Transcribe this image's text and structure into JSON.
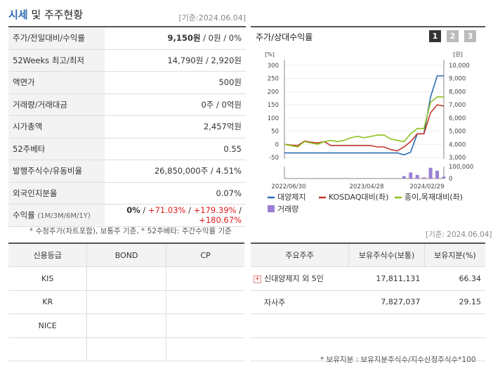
{
  "header": {
    "title_a": "시세",
    "title_b": " 및 주주현황",
    "asof": "[기준:2024.06.04]"
  },
  "price_table": {
    "rows": [
      {
        "label": "주가/전일대비/수익률",
        "value_a": "9,150원",
        "value_b": " / 0원 / 0%"
      },
      {
        "label": "52Weeks 최고/최저",
        "value": "14,790원 / 2,920원"
      },
      {
        "label": "액면가",
        "value": "500원"
      },
      {
        "label": "거래량/거래대금",
        "value": "0주 / 0억원"
      },
      {
        "label": "시가총액",
        "value": "2,457억원"
      },
      {
        "label": "52주베타",
        "value": "0.55"
      },
      {
        "label": "발행주식수/유동비율",
        "value": "26,850,000주 / 4.51%"
      },
      {
        "label": "외국인지분율",
        "value": "0.07%"
      }
    ],
    "returns": {
      "label": "수익률",
      "label_small": "(1M/3M/6M/1Y)",
      "v1": "0%",
      "v2": "+71.03%",
      "v3": "+179.39%",
      "v4": "+180.67%"
    },
    "footnote": "* 수정주가(차트포함), 보통주 기준, * 52주베타: 주간수익률 기준"
  },
  "chart_panel": {
    "title": "주가/상대수익률",
    "tabs": [
      "1",
      "2",
      "3"
    ],
    "colors": {
      "tab_active": "#333333",
      "tab_inactive": "#bbbbbb"
    }
  },
  "chart_data": {
    "type": "line",
    "left_axis": {
      "unit": "[%]",
      "ticks": [
        "300",
        "250",
        "200",
        "150",
        "100",
        "50",
        "0",
        "-50"
      ],
      "range": [
        -50,
        300
      ]
    },
    "right_axis": {
      "unit": "[원]",
      "ticks": [
        "10,000",
        "9,000",
        "8,000",
        "7,000",
        "6,000",
        "5,000",
        "4,000",
        "3,000"
      ],
      "range": [
        3000,
        10000
      ]
    },
    "volume_axis": {
      "ticks": [
        "100,000",
        "0"
      ],
      "range": [
        0,
        100000
      ]
    },
    "x_ticks": [
      "2022/06/30",
      "2023/04/28",
      "2024/02/29"
    ],
    "x_index": [
      0,
      1,
      2,
      3,
      4,
      5,
      6,
      7,
      8,
      9,
      10,
      11,
      12,
      13,
      14,
      15,
      16,
      17,
      18,
      19,
      20,
      21,
      22,
      23,
      24
    ],
    "series": [
      {
        "name": "대양제지",
        "color": "#2d6cb5",
        "axis": "left",
        "values": [
          -33,
          -33,
          -33,
          -33,
          -33,
          -33,
          -33,
          -33,
          -33,
          -33,
          -33,
          -33,
          -33,
          -33,
          -33,
          -33,
          -33,
          -33,
          -40,
          -30,
          40,
          40,
          180,
          260,
          260
        ]
      },
      {
        "name": "KOSDAQ대비(좌)",
        "color": "#c0392b",
        "axis": "left",
        "values": [
          0,
          -3,
          -5,
          12,
          8,
          5,
          10,
          -5,
          -5,
          -5,
          -5,
          -5,
          -5,
          -5,
          -10,
          -10,
          -20,
          -25,
          -10,
          10,
          40,
          40,
          120,
          150,
          145
        ]
      },
      {
        "name": "종이,목재대비(좌)",
        "color": "#8dc21f",
        "axis": "left",
        "values": [
          0,
          -5,
          -10,
          10,
          5,
          0,
          10,
          15,
          10,
          15,
          25,
          30,
          25,
          30,
          35,
          35,
          20,
          15,
          10,
          40,
          60,
          60,
          160,
          180,
          180
        ]
      }
    ],
    "volume": {
      "name": "거래량",
      "color": "#9b7fd4",
      "values": [
        0,
        0,
        0,
        0,
        0,
        0,
        0,
        0,
        0,
        0,
        0,
        0,
        0,
        0,
        0,
        0,
        0,
        0,
        20000,
        50000,
        30000,
        10000,
        90000,
        65000,
        15000
      ]
    }
  },
  "credit_table": {
    "headers": [
      "신용등급",
      "BOND",
      "CP"
    ],
    "rows": [
      [
        "KIS",
        "",
        ""
      ],
      [
        "KR",
        "",
        ""
      ],
      [
        "NICE",
        "",
        ""
      ],
      [
        "",
        "",
        ""
      ]
    ]
  },
  "holders_table": {
    "asof": "[기준: 2024.06.04]",
    "headers": [
      "주요주주",
      "보유주식수(보통)",
      "보유지분(%)"
    ],
    "rows": [
      {
        "name": "신대양제지 외 5인",
        "shares": "17,811,131",
        "pct": "66.34",
        "expand": "+"
      },
      {
        "name": "자사주",
        "shares": "7,827,037",
        "pct": "29.15",
        "expand": ""
      }
    ],
    "footnote": "* 보유지분 : 보유지분주식수/지수산정주식수*100"
  }
}
